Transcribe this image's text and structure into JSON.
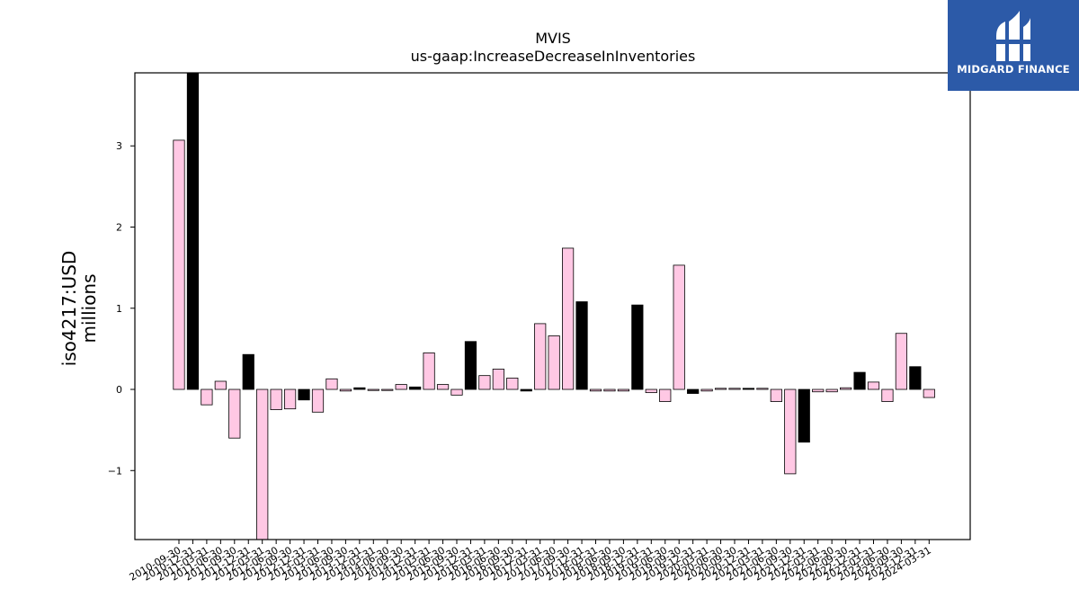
{
  "chart_data": {
    "type": "bar",
    "title": "MVIS",
    "subtitle": "us-gaap:IncreaseDecreaseInInventories",
    "ylabel_line1": "iso4217:USD",
    "ylabel_line2": "millions",
    "xlabel": "",
    "ylim": [
      -1.85,
      3.9
    ],
    "yticks": [
      -1,
      0,
      1,
      2,
      3
    ],
    "ytick_labels": [
      "−1",
      "0",
      "1",
      "2",
      "3"
    ],
    "grid": false,
    "colors": {
      "quarterly": "#ffc8e4",
      "annual": "#000000",
      "edge": "#000000"
    },
    "categories": [
      "2010-09-30",
      "2010-12-31",
      "2011-03-31",
      "2011-06-30",
      "2011-09-30",
      "2011-12-31",
      "2012-03-31",
      "2012-06-30",
      "2012-09-30",
      "2012-12-31",
      "2013-03-31",
      "2013-06-30",
      "2013-09-30",
      "2013-12-31",
      "2014-03-31",
      "2014-06-30",
      "2014-09-30",
      "2014-12-31",
      "2015-03-31",
      "2015-06-30",
      "2015-09-30",
      "2015-12-31",
      "2016-03-31",
      "2016-06-30",
      "2016-09-30",
      "2016-12-31",
      "2017-03-31",
      "2017-06-30",
      "2017-09-30",
      "2017-12-31",
      "2018-03-31",
      "2018-06-30",
      "2018-09-30",
      "2018-12-31",
      "2019-03-31",
      "2019-06-30",
      "2019-09-30",
      "2019-12-31",
      "2020-03-31",
      "2020-06-30",
      "2020-09-30",
      "2020-12-31",
      "2021-03-31",
      "2021-06-30",
      "2021-09-30",
      "2021-12-31",
      "2022-03-31",
      "2022-06-30",
      "2022-09-30",
      "2022-12-31",
      "2023-03-31",
      "2023-06-30",
      "2023-09-30",
      "2023-12-31",
      "2024-03-31"
    ],
    "values": [
      3.07,
      3.9,
      -0.19,
      0.1,
      -0.6,
      0.43,
      -1.85,
      -0.25,
      -0.24,
      -0.13,
      -0.28,
      0.13,
      -0.02,
      0.02,
      -0.01,
      -0.01,
      0.06,
      0.03,
      0.45,
      0.06,
      -0.07,
      0.59,
      0.17,
      0.25,
      0.14,
      -0.02,
      0.81,
      0.66,
      1.74,
      1.08,
      -0.02,
      -0.02,
      -0.02,
      1.04,
      -0.04,
      -0.15,
      1.53,
      -0.05,
      -0.02,
      0.0,
      0.0,
      0.0,
      0.0,
      -0.15,
      -1.04,
      -0.65,
      -0.03,
      -0.03,
      0.02,
      0.21,
      0.09,
      -0.15,
      0.69,
      0.28,
      -0.1
    ],
    "annual": [
      false,
      true,
      false,
      false,
      false,
      true,
      false,
      false,
      false,
      true,
      false,
      false,
      false,
      true,
      false,
      false,
      false,
      true,
      false,
      false,
      false,
      true,
      false,
      false,
      false,
      true,
      false,
      false,
      false,
      true,
      false,
      false,
      false,
      true,
      false,
      false,
      false,
      true,
      false,
      false,
      false,
      true,
      false,
      false,
      false,
      true,
      false,
      false,
      false,
      true,
      false,
      false,
      false,
      true,
      false
    ]
  },
  "logo": {
    "text": "MIDGARD FINANCE",
    "icon": "midgard-logo-icon",
    "background": "#2c5aa8"
  }
}
